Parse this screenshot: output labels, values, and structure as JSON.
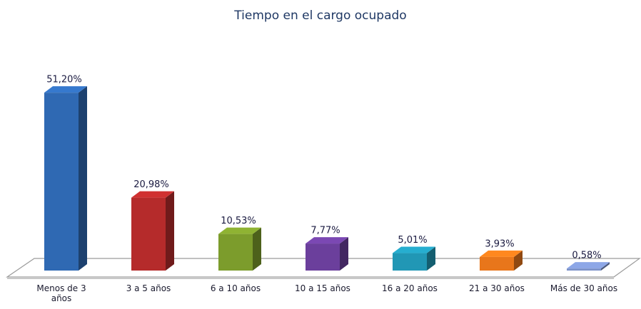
{
  "chart_data": {
    "type": "bar3d",
    "title": "Tiempo en el cargo ocupado",
    "categories": [
      "Menos de 3 años",
      "3 a 5 años",
      "6 a 10 años",
      "10 a 15 años",
      "16 a 20 años",
      "21 a 30 años",
      "Más de 30 años"
    ],
    "values": [
      51.2,
      20.98,
      10.53,
      7.77,
      5.01,
      3.93,
      0.58
    ],
    "value_labels": [
      "51,20%",
      "20,98%",
      "10,53%",
      "7,77%",
      "5,01%",
      "3,93%",
      "0,58%"
    ],
    "colors": [
      "#2f69b3",
      "#b52b2b",
      "#7c9c2c",
      "#6b3f9c",
      "#2197b5",
      "#e8761b",
      "#7b91c9"
    ]
  }
}
